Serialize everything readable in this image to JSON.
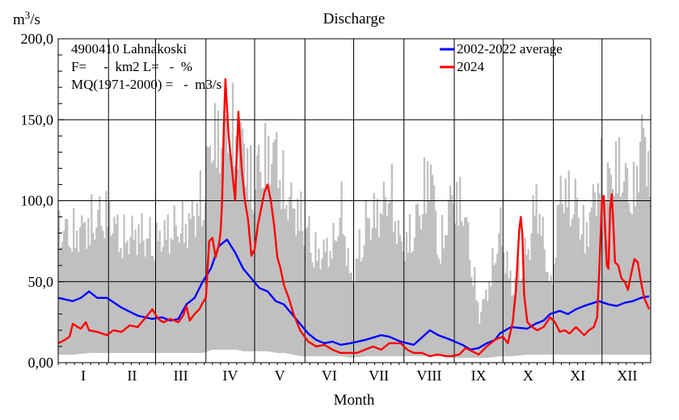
{
  "chart_data": {
    "type": "line",
    "title": "Discharge",
    "unit_label": "m3/s",
    "unit_base": "m",
    "unit_sup": "3",
    "unit_tail": "/s",
    "xlabel": "Month",
    "ylabel": "m3/s",
    "ylim": [
      0,
      200
    ],
    "yticks": [
      "0,00",
      "50,0",
      "100,0",
      "150,0",
      "200,0"
    ],
    "ytick_values": [
      0,
      50,
      100,
      150,
      200
    ],
    "months": [
      "I",
      "II",
      "III",
      "IV",
      "V",
      "VI",
      "VII",
      "VIII",
      "IX",
      "X",
      "XI",
      "XII"
    ],
    "info": {
      "station": "4900410 Lahnakoski",
      "area_line": "F=     -  km2 L=   -  %",
      "mq_line": "MQ(1971-2000) =   -  m3/s"
    },
    "legend": [
      {
        "name": "2002-2022 average",
        "color": "#0000ff"
      },
      {
        "name": "2024",
        "color": "#ff0000"
      }
    ],
    "colors": {
      "range_band": "#c0c0c0",
      "grid": "#000000",
      "average": "#0000ff",
      "year": "#ff0000"
    },
    "range_band": {
      "description": "daily min-max range 2002-2022",
      "day": [
        1,
        10,
        20,
        31,
        40,
        50,
        60,
        70,
        80,
        90,
        95,
        100,
        105,
        110,
        115,
        120,
        125,
        130,
        135,
        140,
        150,
        160,
        170,
        175,
        181,
        190,
        200,
        205,
        212,
        220,
        230,
        235,
        243,
        250,
        260,
        265,
        273,
        280,
        290,
        295,
        304,
        310,
        320,
        325,
        334,
        340,
        345,
        350,
        355,
        360,
        365
      ],
      "max": [
        100,
        96,
        105,
        112,
        92,
        98,
        90,
        100,
        103,
        125,
        170,
        168,
        175,
        172,
        165,
        130,
        150,
        155,
        158,
        125,
        110,
        80,
        88,
        115,
        60,
        105,
        115,
        130,
        85,
        100,
        150,
        80,
        125,
        118,
        35,
        55,
        100,
        55,
        85,
        125,
        55,
        130,
        118,
        95,
        140,
        135,
        150,
        135,
        125,
        172,
        150
      ],
      "min": [
        5,
        5,
        6,
        6,
        6,
        6,
        6,
        6,
        6,
        6,
        8,
        8,
        8,
        8,
        7,
        7,
        7,
        7,
        6,
        6,
        4,
        4,
        4,
        4,
        3,
        4,
        4,
        4,
        4,
        4,
        4,
        4,
        3,
        3,
        3,
        3,
        4,
        4,
        5,
        5,
        5,
        5,
        5,
        5,
        5,
        5,
        5,
        5,
        5,
        5,
        5
      ]
    },
    "series": [
      {
        "name": "2002-2022 average",
        "day": [
          1,
          10,
          15,
          20,
          25,
          31,
          40,
          50,
          59,
          65,
          70,
          75,
          80,
          85,
          90,
          95,
          100,
          105,
          110,
          115,
          120,
          125,
          130,
          135,
          140,
          145,
          150,
          155,
          160,
          165,
          170,
          175,
          181,
          190,
          200,
          205,
          212,
          220,
          230,
          235,
          243,
          250,
          255,
          260,
          265,
          270,
          273,
          280,
          290,
          295,
          300,
          304,
          310,
          315,
          320,
          325,
          334,
          340,
          345,
          350,
          355,
          360,
          365
        ],
        "values": [
          40,
          38,
          40,
          44,
          40,
          40,
          34,
          29,
          27,
          28,
          26,
          27,
          36,
          40,
          50,
          58,
          72,
          76,
          68,
          58,
          52,
          46,
          44,
          38,
          36,
          30,
          24,
          18,
          14,
          12,
          13,
          11,
          12,
          14,
          17,
          16,
          13,
          11,
          20,
          17,
          14,
          11,
          8,
          9,
          12,
          14,
          18,
          22,
          21,
          24,
          26,
          30,
          32,
          30,
          33,
          35,
          38,
          36,
          35,
          37,
          38,
          40,
          41
        ]
      },
      {
        "name": "2024",
        "day": [
          1,
          5,
          8,
          10,
          13,
          15,
          18,
          20,
          25,
          31,
          35,
          40,
          45,
          50,
          55,
          59,
          62,
          64,
          66,
          70,
          75,
          78,
          80,
          82,
          85,
          88,
          90,
          92,
          94,
          96,
          98,
          100,
          101,
          102,
          103,
          104,
          106,
          108,
          110,
          112,
          114,
          116,
          118,
          120,
          122,
          124,
          126,
          128,
          130,
          132,
          134,
          136,
          138,
          140,
          143,
          146,
          150,
          155,
          160,
          165,
          170,
          175,
          181,
          185,
          190,
          195,
          200,
          205,
          212,
          216,
          220,
          225,
          230,
          235,
          240,
          243,
          248,
          252,
          256,
          260,
          265,
          270,
          272,
          275,
          278,
          281,
          283,
          285,
          286,
          287,
          288,
          290,
          293,
          296,
          300,
          304,
          307,
          310,
          313,
          316,
          320,
          325,
          328,
          331,
          333,
          334,
          335,
          336,
          337,
          338,
          339,
          340,
          341,
          342,
          343,
          344,
          346,
          348,
          350,
          352,
          354,
          356,
          358,
          360,
          362,
          365
        ],
        "values": [
          12,
          14,
          16,
          24,
          22,
          21,
          25,
          20,
          19,
          17,
          20,
          19,
          23,
          22,
          28,
          33,
          28,
          26,
          25,
          27,
          25,
          29,
          35,
          26,
          30,
          33,
          37,
          40,
          75,
          77,
          65,
          73,
          80,
          100,
          145,
          175,
          140,
          120,
          100,
          155,
          120,
          100,
          88,
          66,
          70,
          85,
          95,
          105,
          110,
          100,
          85,
          65,
          58,
          48,
          40,
          30,
          20,
          13,
          10,
          11,
          8,
          6,
          6,
          6,
          8,
          10,
          8,
          12,
          12,
          8,
          6,
          6,
          4,
          5,
          4,
          4,
          5,
          9,
          7,
          5,
          10,
          14,
          15,
          16,
          12,
          25,
          45,
          82,
          90,
          78,
          42,
          25,
          22,
          20,
          22,
          28,
          25,
          19,
          20,
          18,
          22,
          17,
          20,
          22,
          28,
          50,
          75,
          100,
          103,
          80,
          60,
          58,
          95,
          104,
          85,
          62,
          60,
          52,
          50,
          45,
          55,
          64,
          62,
          50,
          40,
          33
        ]
      }
    ]
  }
}
